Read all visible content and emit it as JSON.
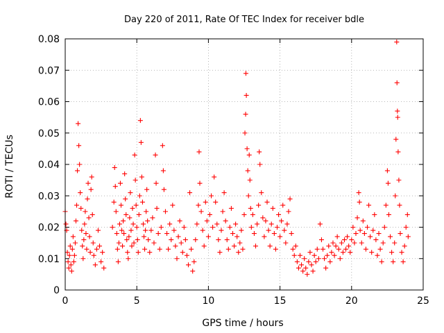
{
  "chart_data": {
    "type": "scatter",
    "title": "Day 220 of 2011, Rate Of TEC Index for receiver bdle",
    "xlabel": "GPS time / hours",
    "ylabel": "ROTI / TECUs",
    "xlim": [
      0,
      25
    ],
    "ylim": [
      0,
      0.08
    ],
    "xticks": [
      0,
      5,
      10,
      15,
      20,
      25
    ],
    "yticks": [
      0,
      0.01,
      0.02,
      0.03,
      0.04,
      0.05,
      0.06,
      0.07,
      0.08
    ],
    "xtick_labels": [
      "0",
      "5",
      "10",
      "15",
      "20",
      "25"
    ],
    "ytick_labels": [
      "0",
      "0.01",
      "0.02",
      "0.03",
      "0.04",
      "0.05",
      "0.06",
      "0.07",
      "0.08"
    ],
    "grid": true,
    "legend": "none",
    "marker": "plus",
    "color": "#ff0000",
    "points": [
      [
        0.0,
        0.025
      ],
      [
        0.05,
        0.021
      ],
      [
        0.1,
        0.019
      ],
      [
        0.15,
        0.012
      ],
      [
        0.2,
        0.009
      ],
      [
        0.25,
        0.007
      ],
      [
        0.3,
        0.011
      ],
      [
        0.35,
        0.014
      ],
      [
        0.4,
        0.008
      ],
      [
        0.45,
        0.006
      ],
      [
        0.5,
        0.013
      ],
      [
        0.55,
        0.017
      ],
      [
        0.6,
        0.009
      ],
      [
        0.65,
        0.011
      ],
      [
        0.7,
        0.015
      ],
      [
        0.75,
        0.022
      ],
      [
        0.8,
        0.027
      ],
      [
        0.85,
        0.038
      ],
      [
        0.9,
        0.053
      ],
      [
        0.95,
        0.046
      ],
      [
        1.0,
        0.04
      ],
      [
        1.05,
        0.031
      ],
      [
        1.1,
        0.026
      ],
      [
        1.15,
        0.019
      ],
      [
        1.2,
        0.014
      ],
      [
        1.25,
        0.01
      ],
      [
        1.3,
        0.016
      ],
      [
        1.35,
        0.021
      ],
      [
        1.4,
        0.025
      ],
      [
        1.45,
        0.018
      ],
      [
        1.5,
        0.013
      ],
      [
        1.55,
        0.029
      ],
      [
        1.6,
        0.034
      ],
      [
        1.65,
        0.023
      ],
      [
        1.7,
        0.017
      ],
      [
        1.75,
        0.012
      ],
      [
        1.8,
        0.032
      ],
      [
        1.85,
        0.036
      ],
      [
        1.9,
        0.024
      ],
      [
        1.95,
        0.015
      ],
      [
        2.0,
        0.011
      ],
      [
        2.1,
        0.008
      ],
      [
        2.2,
        0.013
      ],
      [
        2.3,
        0.019
      ],
      [
        2.4,
        0.014
      ],
      [
        2.5,
        0.009
      ],
      [
        2.6,
        0.012
      ],
      [
        2.7,
        0.007
      ],
      [
        3.3,
        0.02
      ],
      [
        3.4,
        0.028
      ],
      [
        3.45,
        0.039
      ],
      [
        3.5,
        0.033
      ],
      [
        3.55,
        0.025
      ],
      [
        3.6,
        0.018
      ],
      [
        3.65,
        0.013
      ],
      [
        3.7,
        0.009
      ],
      [
        3.75,
        0.015
      ],
      [
        3.8,
        0.021
      ],
      [
        3.85,
        0.034
      ],
      [
        3.9,
        0.027
      ],
      [
        3.95,
        0.019
      ],
      [
        4.0,
        0.014
      ],
      [
        4.05,
        0.022
      ],
      [
        4.1,
        0.018
      ],
      [
        4.15,
        0.037
      ],
      [
        4.2,
        0.029
      ],
      [
        4.25,
        0.024
      ],
      [
        4.3,
        0.016
      ],
      [
        4.35,
        0.012
      ],
      [
        4.4,
        0.01
      ],
      [
        4.45,
        0.017
      ],
      [
        4.5,
        0.023
      ],
      [
        4.55,
        0.031
      ],
      [
        4.6,
        0.019
      ],
      [
        4.65,
        0.014
      ],
      [
        4.7,
        0.026
      ],
      [
        4.75,
        0.021
      ],
      [
        4.8,
        0.015
      ],
      [
        4.85,
        0.043
      ],
      [
        4.9,
        0.035
      ],
      [
        4.95,
        0.027
      ],
      [
        5.0,
        0.02
      ],
      [
        5.05,
        0.016
      ],
      [
        5.1,
        0.012
      ],
      [
        5.15,
        0.024
      ],
      [
        5.2,
        0.03
      ],
      [
        5.25,
        0.054
      ],
      [
        5.3,
        0.047
      ],
      [
        5.35,
        0.036
      ],
      [
        5.4,
        0.028
      ],
      [
        5.45,
        0.021
      ],
      [
        5.5,
        0.017
      ],
      [
        5.55,
        0.013
      ],
      [
        5.6,
        0.019
      ],
      [
        5.65,
        0.025
      ],
      [
        5.7,
        0.032
      ],
      [
        5.75,
        0.022
      ],
      [
        5.8,
        0.016
      ],
      [
        5.9,
        0.012
      ],
      [
        6.0,
        0.019
      ],
      [
        6.1,
        0.023
      ],
      [
        6.2,
        0.015
      ],
      [
        6.3,
        0.043
      ],
      [
        6.35,
        0.034
      ],
      [
        6.4,
        0.026
      ],
      [
        6.5,
        0.018
      ],
      [
        6.6,
        0.013
      ],
      [
        6.7,
        0.02
      ],
      [
        6.8,
        0.046
      ],
      [
        6.85,
        0.038
      ],
      [
        6.9,
        0.032
      ],
      [
        7.0,
        0.025
      ],
      [
        7.1,
        0.018
      ],
      [
        7.2,
        0.013
      ],
      [
        7.3,
        0.021
      ],
      [
        7.4,
        0.016
      ],
      [
        7.5,
        0.027
      ],
      [
        7.6,
        0.019
      ],
      [
        7.7,
        0.014
      ],
      [
        7.8,
        0.01
      ],
      [
        7.9,
        0.017
      ],
      [
        8.0,
        0.022
      ],
      [
        8.1,
        0.015
      ],
      [
        8.2,
        0.012
      ],
      [
        8.3,
        0.02
      ],
      [
        8.4,
        0.016
      ],
      [
        8.5,
        0.011
      ],
      [
        8.6,
        0.008
      ],
      [
        8.7,
        0.031
      ],
      [
        8.8,
        0.013
      ],
      [
        8.9,
        0.006
      ],
      [
        9.0,
        0.009
      ],
      [
        9.1,
        0.016
      ],
      [
        9.2,
        0.021
      ],
      [
        9.3,
        0.027
      ],
      [
        9.35,
        0.044
      ],
      [
        9.4,
        0.034
      ],
      [
        9.5,
        0.025
      ],
      [
        9.6,
        0.019
      ],
      [
        9.7,
        0.014
      ],
      [
        9.8,
        0.028
      ],
      [
        9.9,
        0.022
      ],
      [
        10.0,
        0.017
      ],
      [
        10.1,
        0.024
      ],
      [
        10.2,
        0.03
      ],
      [
        10.3,
        0.02
      ],
      [
        10.4,
        0.036
      ],
      [
        10.5,
        0.028
      ],
      [
        10.6,
        0.021
      ],
      [
        10.7,
        0.016
      ],
      [
        10.8,
        0.012
      ],
      [
        10.9,
        0.019
      ],
      [
        11.0,
        0.025
      ],
      [
        11.1,
        0.031
      ],
      [
        11.2,
        0.022
      ],
      [
        11.3,
        0.016
      ],
      [
        11.4,
        0.013
      ],
      [
        11.5,
        0.02
      ],
      [
        11.6,
        0.026
      ],
      [
        11.7,
        0.018
      ],
      [
        11.8,
        0.014
      ],
      [
        11.9,
        0.021
      ],
      [
        12.0,
        0.017
      ],
      [
        12.1,
        0.012
      ],
      [
        12.2,
        0.015
      ],
      [
        12.3,
        0.019
      ],
      [
        12.4,
        0.013
      ],
      [
        12.5,
        0.024
      ],
      [
        12.55,
        0.05
      ],
      [
        12.6,
        0.056
      ],
      [
        12.62,
        0.069
      ],
      [
        12.65,
        0.062
      ],
      [
        12.7,
        0.045
      ],
      [
        12.75,
        0.038
      ],
      [
        12.8,
        0.03
      ],
      [
        12.85,
        0.043
      ],
      [
        12.9,
        0.035
      ],
      [
        12.95,
        0.026
      ],
      [
        13.0,
        0.02
      ],
      [
        13.1,
        0.024
      ],
      [
        13.2,
        0.018
      ],
      [
        13.3,
        0.014
      ],
      [
        13.4,
        0.021
      ],
      [
        13.5,
        0.027
      ],
      [
        13.55,
        0.044
      ],
      [
        13.6,
        0.04
      ],
      [
        13.7,
        0.031
      ],
      [
        13.8,
        0.023
      ],
      [
        13.9,
        0.017
      ],
      [
        14.0,
        0.022
      ],
      [
        14.1,
        0.028
      ],
      [
        14.2,
        0.019
      ],
      [
        14.3,
        0.014
      ],
      [
        14.4,
        0.021
      ],
      [
        14.5,
        0.026
      ],
      [
        14.6,
        0.018
      ],
      [
        14.7,
        0.013
      ],
      [
        14.8,
        0.02
      ],
      [
        14.9,
        0.024
      ],
      [
        15.0,
        0.017
      ],
      [
        15.1,
        0.022
      ],
      [
        15.2,
        0.027
      ],
      [
        15.3,
        0.019
      ],
      [
        15.4,
        0.015
      ],
      [
        15.5,
        0.021
      ],
      [
        15.6,
        0.025
      ],
      [
        15.7,
        0.029
      ],
      [
        15.8,
        0.018
      ],
      [
        15.9,
        0.013
      ],
      [
        16.0,
        0.011
      ],
      [
        16.1,
        0.014
      ],
      [
        16.2,
        0.009
      ],
      [
        16.3,
        0.007
      ],
      [
        16.4,
        0.011
      ],
      [
        16.5,
        0.008
      ],
      [
        16.6,
        0.006
      ],
      [
        16.7,
        0.01
      ],
      [
        16.8,
        0.007
      ],
      [
        16.9,
        0.005
      ],
      [
        17.0,
        0.009
      ],
      [
        17.1,
        0.012
      ],
      [
        17.2,
        0.008
      ],
      [
        17.3,
        0.006
      ],
      [
        17.4,
        0.011
      ],
      [
        17.5,
        0.009
      ],
      [
        17.6,
        0.013
      ],
      [
        17.7,
        0.01
      ],
      [
        17.8,
        0.021
      ],
      [
        17.9,
        0.016
      ],
      [
        18.0,
        0.013
      ],
      [
        18.1,
        0.01
      ],
      [
        18.2,
        0.007
      ],
      [
        18.3,
        0.011
      ],
      [
        18.4,
        0.014
      ],
      [
        18.5,
        0.009
      ],
      [
        18.6,
        0.012
      ],
      [
        18.7,
        0.015
      ],
      [
        18.8,
        0.011
      ],
      [
        18.9,
        0.014
      ],
      [
        19.0,
        0.017
      ],
      [
        19.1,
        0.013
      ],
      [
        19.2,
        0.01
      ],
      [
        19.3,
        0.015
      ],
      [
        19.4,
        0.012
      ],
      [
        19.5,
        0.016
      ],
      [
        19.6,
        0.013
      ],
      [
        19.7,
        0.017
      ],
      [
        19.8,
        0.014
      ],
      [
        19.9,
        0.012
      ],
      [
        20.0,
        0.016
      ],
      [
        20.1,
        0.02
      ],
      [
        20.2,
        0.015
      ],
      [
        20.3,
        0.018
      ],
      [
        20.4,
        0.023
      ],
      [
        20.5,
        0.031
      ],
      [
        20.55,
        0.028
      ],
      [
        20.6,
        0.019
      ],
      [
        20.7,
        0.015
      ],
      [
        20.8,
        0.022
      ],
      [
        20.9,
        0.018
      ],
      [
        21.0,
        0.013
      ],
      [
        21.1,
        0.02
      ],
      [
        21.2,
        0.027
      ],
      [
        21.3,
        0.017
      ],
      [
        21.4,
        0.012
      ],
      [
        21.5,
        0.019
      ],
      [
        21.6,
        0.024
      ],
      [
        21.7,
        0.016
      ],
      [
        21.8,
        0.011
      ],
      [
        21.9,
        0.018
      ],
      [
        22.0,
        0.013
      ],
      [
        22.1,
        0.009
      ],
      [
        22.2,
        0.015
      ],
      [
        22.3,
        0.02
      ],
      [
        22.4,
        0.027
      ],
      [
        22.5,
        0.038
      ],
      [
        22.55,
        0.034
      ],
      [
        22.6,
        0.024
      ],
      [
        22.7,
        0.017
      ],
      [
        22.8,
        0.012
      ],
      [
        22.9,
        0.009
      ],
      [
        23.0,
        0.015
      ],
      [
        23.05,
        0.03
      ],
      [
        23.1,
        0.048
      ],
      [
        23.15,
        0.079
      ],
      [
        23.17,
        0.066
      ],
      [
        23.2,
        0.057
      ],
      [
        23.22,
        0.055
      ],
      [
        23.25,
        0.044
      ],
      [
        23.3,
        0.035
      ],
      [
        23.35,
        0.027
      ],
      [
        23.4,
        0.018
      ],
      [
        23.5,
        0.012
      ],
      [
        23.6,
        0.009
      ],
      [
        23.7,
        0.014
      ],
      [
        23.8,
        0.02
      ],
      [
        23.9,
        0.024
      ],
      [
        23.95,
        0.017
      ]
    ]
  }
}
